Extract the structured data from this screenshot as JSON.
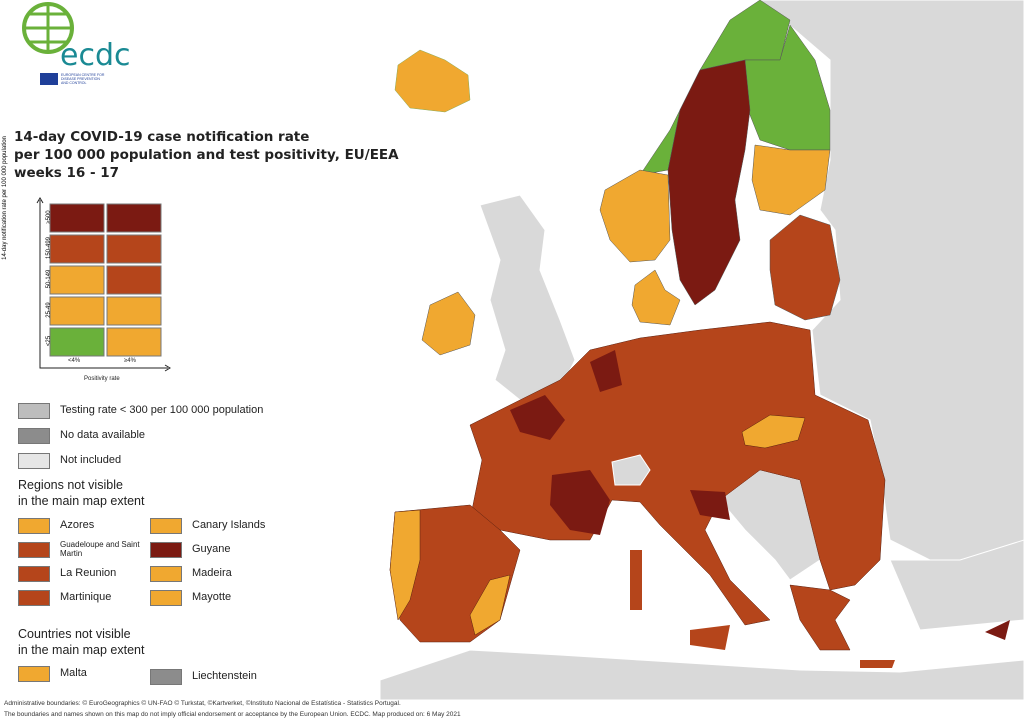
{
  "logo": {
    "name": "ecdc",
    "subtitle": "EUROPEAN CENTRE FOR DISEASE PREVENTION AND CONTROL"
  },
  "title": [
    "14-day COVID-19 case notification rate",
    "per 100 000 population and test positivity, EU/EEA",
    "weeks 16 - 17"
  ],
  "matrix": {
    "y_axis_label": "14-day notification rate per 100 000 population",
    "x_axis_label": "Positivity rate",
    "rows": [
      "≥500",
      "150-499",
      "50-149",
      "25-49",
      "<25"
    ],
    "columns": [
      "<4%",
      "≥4%"
    ]
  },
  "legend": {
    "other": [
      "Testing rate < 300 per 100 000 population",
      "No data available",
      "Not included"
    ],
    "regions_heading": [
      "Regions not visible",
      "in the main map extent"
    ],
    "regions": [
      "Azores",
      "Canary Islands",
      "Guadeloupe and Saint Martin",
      "Guyane",
      "La Reunion",
      "Madeira",
      "Martinique",
      "Mayotte"
    ],
    "countries_heading": [
      "Countries not visible",
      "in the main map extent"
    ],
    "countries": [
      "Malta",
      "Liechtenstein"
    ]
  },
  "footer": [
    "Administrative boundaries: © EuroGeographics © UN-FAO © Turkstat, ©Kartverket, ©Instituto Nacional de Estatística - Statistics Portugal.",
    "The boundaries and names shown on this map do not imply official endorsement or acceptance by the European Union. ECDC. Map produced on: 6 May 2021"
  ]
}
